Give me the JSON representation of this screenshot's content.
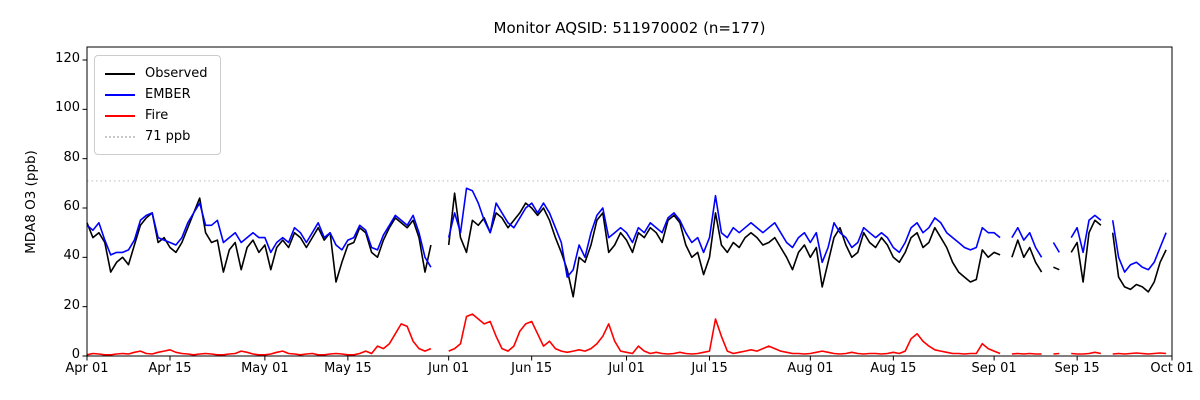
{
  "title": "Monitor AQSID: 511970002 (n=177)",
  "colors": {
    "observed": "#000000",
    "ember": "#0000ff",
    "fire": "#ff0000",
    "threshold": "#c8c8c8",
    "axis": "#000000"
  },
  "chart_data": {
    "type": "line",
    "title": "Monitor AQSID: 511970002 (n=177)",
    "xlabel": "",
    "ylabel": "MDA8 O3 (ppb)",
    "ylim": [
      0,
      125
    ],
    "yticks": [
      0,
      20,
      40,
      60,
      80,
      100,
      120
    ],
    "xtick_labels": [
      "Apr 01",
      "Apr 15",
      "May 01",
      "May 15",
      "Jun 01",
      "Jun 15",
      "Jul 01",
      "Jul 15",
      "Aug 01",
      "Aug 15",
      "Sep 01",
      "Sep 15",
      "Oct 01"
    ],
    "xtick_days": [
      0,
      14,
      30,
      44,
      61,
      75,
      91,
      105,
      122,
      136,
      153,
      167,
      183
    ],
    "n_days": 183,
    "x_start": "Apr 01",
    "x_end": "Oct 01",
    "grid": false,
    "legend_position": "upper-left",
    "n_points": 177,
    "threshold": {
      "value": 71,
      "label": "71 ppb",
      "style": "dotted",
      "color": "#c8c8c8"
    },
    "series": [
      {
        "name": "Observed",
        "color": "#000000",
        "values": [
          54,
          48,
          50,
          46,
          34,
          38,
          40,
          37,
          45,
          53,
          56,
          58,
          46,
          48,
          44,
          42,
          46,
          52,
          58,
          64,
          50,
          46,
          47,
          34,
          43,
          46,
          35,
          44,
          47,
          42,
          45,
          35,
          44,
          47,
          44,
          50,
          48,
          44,
          48,
          52,
          47,
          50,
          30,
          38,
          45,
          46,
          52,
          50,
          42,
          40,
          47,
          52,
          56,
          54,
          52,
          55,
          48,
          34,
          45,
          null,
          null,
          45,
          66,
          48,
          42,
          55,
          53,
          56,
          50,
          58,
          56,
          52,
          55,
          58,
          62,
          60,
          57,
          60,
          55,
          48,
          42,
          35,
          24,
          40,
          38,
          45,
          55,
          58,
          42,
          45,
          50,
          47,
          42,
          50,
          48,
          52,
          50,
          46,
          55,
          57,
          54,
          45,
          40,
          42,
          33,
          40,
          58,
          45,
          42,
          46,
          44,
          48,
          50,
          48,
          45,
          46,
          48,
          44,
          40,
          35,
          42,
          45,
          40,
          44,
          28,
          38,
          48,
          52,
          45,
          40,
          42,
          50,
          46,
          44,
          48,
          45,
          40,
          38,
          42,
          48,
          50,
          44,
          46,
          52,
          48,
          44,
          38,
          34,
          32,
          30,
          31,
          43,
          40,
          42,
          41,
          null,
          40,
          47,
          40,
          44,
          38,
          34,
          null,
          36,
          35,
          null,
          42,
          46,
          30,
          50,
          55,
          53,
          null,
          50,
          32,
          28,
          27,
          29,
          28,
          26,
          30,
          38,
          43
        ]
      },
      {
        "name": "EMBER",
        "color": "#0000ff",
        "values": [
          53,
          51,
          54,
          47,
          41,
          42,
          42,
          43,
          47,
          55,
          57,
          58,
          48,
          47,
          46,
          45,
          48,
          54,
          58,
          62,
          53,
          53,
          55,
          46,
          48,
          50,
          46,
          48,
          50,
          48,
          48,
          42,
          46,
          48,
          46,
          52,
          50,
          46,
          50,
          54,
          48,
          50,
          45,
          43,
          47,
          48,
          53,
          51,
          44,
          43,
          49,
          53,
          57,
          55,
          53,
          57,
          50,
          40,
          36,
          null,
          null,
          48,
          58,
          50,
          68,
          67,
          62,
          55,
          50,
          62,
          58,
          54,
          52,
          56,
          60,
          62,
          58,
          62,
          58,
          52,
          46,
          32,
          35,
          45,
          40,
          50,
          57,
          60,
          48,
          50,
          52,
          50,
          46,
          52,
          50,
          54,
          52,
          50,
          56,
          58,
          55,
          50,
          46,
          48,
          42,
          48,
          65,
          50,
          48,
          52,
          50,
          52,
          54,
          52,
          50,
          52,
          54,
          50,
          46,
          44,
          48,
          50,
          46,
          50,
          38,
          44,
          54,
          50,
          48,
          44,
          46,
          52,
          50,
          48,
          50,
          48,
          44,
          42,
          46,
          52,
          54,
          50,
          52,
          56,
          54,
          50,
          48,
          46,
          44,
          43,
          44,
          52,
          50,
          50,
          48,
          null,
          48,
          52,
          47,
          50,
          44,
          40,
          null,
          46,
          42,
          null,
          48,
          52,
          42,
          55,
          57,
          55,
          null,
          55,
          40,
          34,
          37,
          38,
          36,
          35,
          38,
          44,
          50
        ]
      },
      {
        "name": "Fire",
        "color": "#ff0000",
        "values": [
          0.5,
          1,
          0.8,
          0.5,
          0.5,
          0.8,
          1,
          0.8,
          1.5,
          2,
          1,
          0.8,
          1.5,
          2,
          2.5,
          1.5,
          1,
          0.8,
          0.5,
          0.8,
          1,
          0.8,
          0.5,
          0.5,
          0.8,
          1,
          2,
          1.5,
          0.8,
          0.5,
          0.5,
          0.8,
          1.5,
          2,
          1,
          0.8,
          0.5,
          0.8,
          1,
          0.5,
          0.5,
          0.8,
          1,
          0.8,
          0.5,
          0.5,
          1,
          2,
          1,
          4,
          3,
          5,
          9,
          13,
          12,
          6,
          3,
          2,
          3,
          null,
          null,
          2,
          3,
          5,
          16,
          17,
          15,
          13,
          14,
          8,
          3,
          2,
          4,
          10,
          13,
          14,
          9,
          4,
          6,
          3,
          2,
          1.5,
          2,
          2.5,
          2,
          3,
          5,
          8,
          13,
          6,
          2,
          1.5,
          1,
          4,
          2,
          1,
          1.5,
          1,
          0.8,
          1,
          1.5,
          1,
          0.8,
          1,
          1.5,
          2,
          15,
          8,
          2,
          1,
          1.5,
          2,
          2.5,
          2,
          3,
          4,
          3,
          2,
          1.5,
          1,
          1,
          0.8,
          1,
          1.5,
          2,
          1.5,
          1,
          0.8,
          1,
          1.5,
          1,
          0.8,
          1,
          1,
          0.8,
          1,
          1.5,
          1,
          2,
          7,
          9,
          6,
          4,
          2.5,
          2,
          1.5,
          1,
          1,
          0.8,
          1,
          1,
          5,
          3,
          2,
          1,
          null,
          0.8,
          1,
          0.8,
          1,
          0.8,
          0.8,
          null,
          0.8,
          1,
          null,
          1,
          0.8,
          0.8,
          1,
          1.5,
          1,
          null,
          0.8,
          1,
          0.8,
          1,
          1.2,
          1,
          0.8,
          1,
          1.2,
          1
        ]
      }
    ]
  }
}
